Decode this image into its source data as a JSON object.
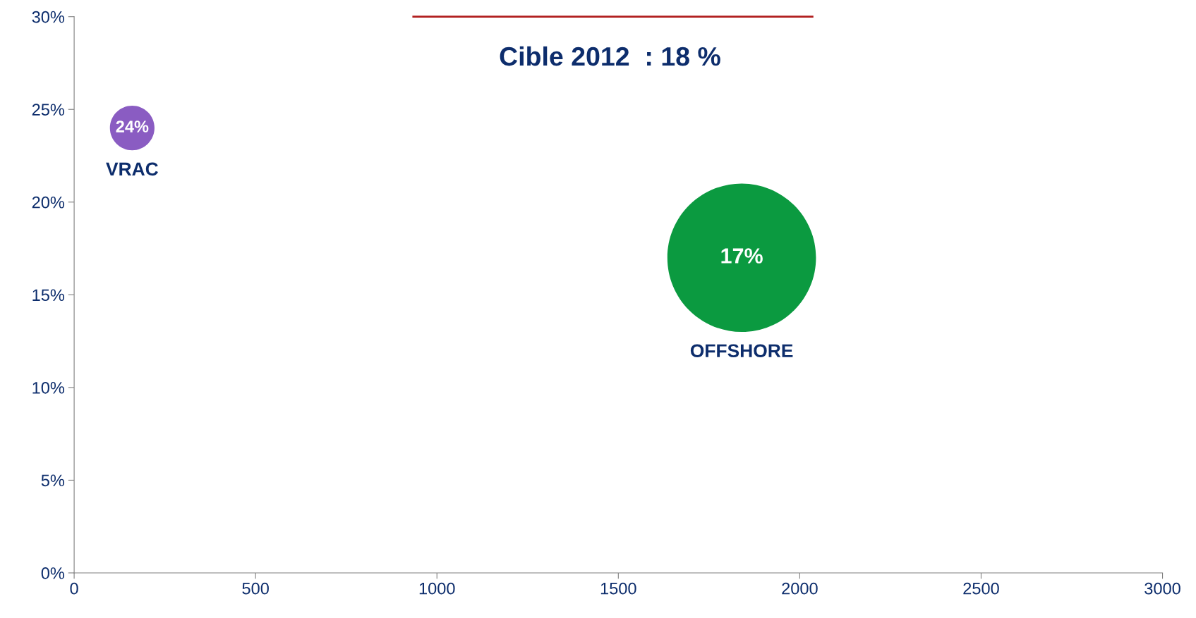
{
  "chart_data": {
    "type": "bubble",
    "xlim": [
      0,
      3000
    ],
    "xticks": [
      0,
      500,
      1000,
      1500,
      2000,
      2500,
      3000
    ],
    "ylim": [
      0,
      30
    ],
    "yticks": [
      {
        "value": 0,
        "label": "0%"
      },
      {
        "value": 5,
        "label": "5%"
      },
      {
        "value": 10,
        "label": "10%"
      },
      {
        "value": 15,
        "label": "15%"
      },
      {
        "value": 20,
        "label": "20%"
      },
      {
        "value": 25,
        "label": "25%"
      },
      {
        "value": 30,
        "label": "30%"
      }
    ],
    "grid": false,
    "legend": false,
    "series": [
      {
        "name": "VRAC",
        "color": "#8a5cc2",
        "x": [
          160
        ],
        "values": [
          24
        ],
        "sizes": [
          0.09
        ],
        "value_labels": [
          "24%"
        ]
      },
      {
        "name": "OFFSHORE",
        "color": "#0b9a40",
        "x": [
          1840
        ],
        "values": [
          17
        ],
        "sizes": [
          1
        ],
        "value_labels": [
          "17%"
        ]
      },
      {
        "type": "line",
        "color": "#b01c1c",
        "x": [
          935,
          2035
        ],
        "values": [
          30,
          30
        ]
      }
    ],
    "annotations": [
      "Cible 2012  : 18 %"
    ]
  }
}
